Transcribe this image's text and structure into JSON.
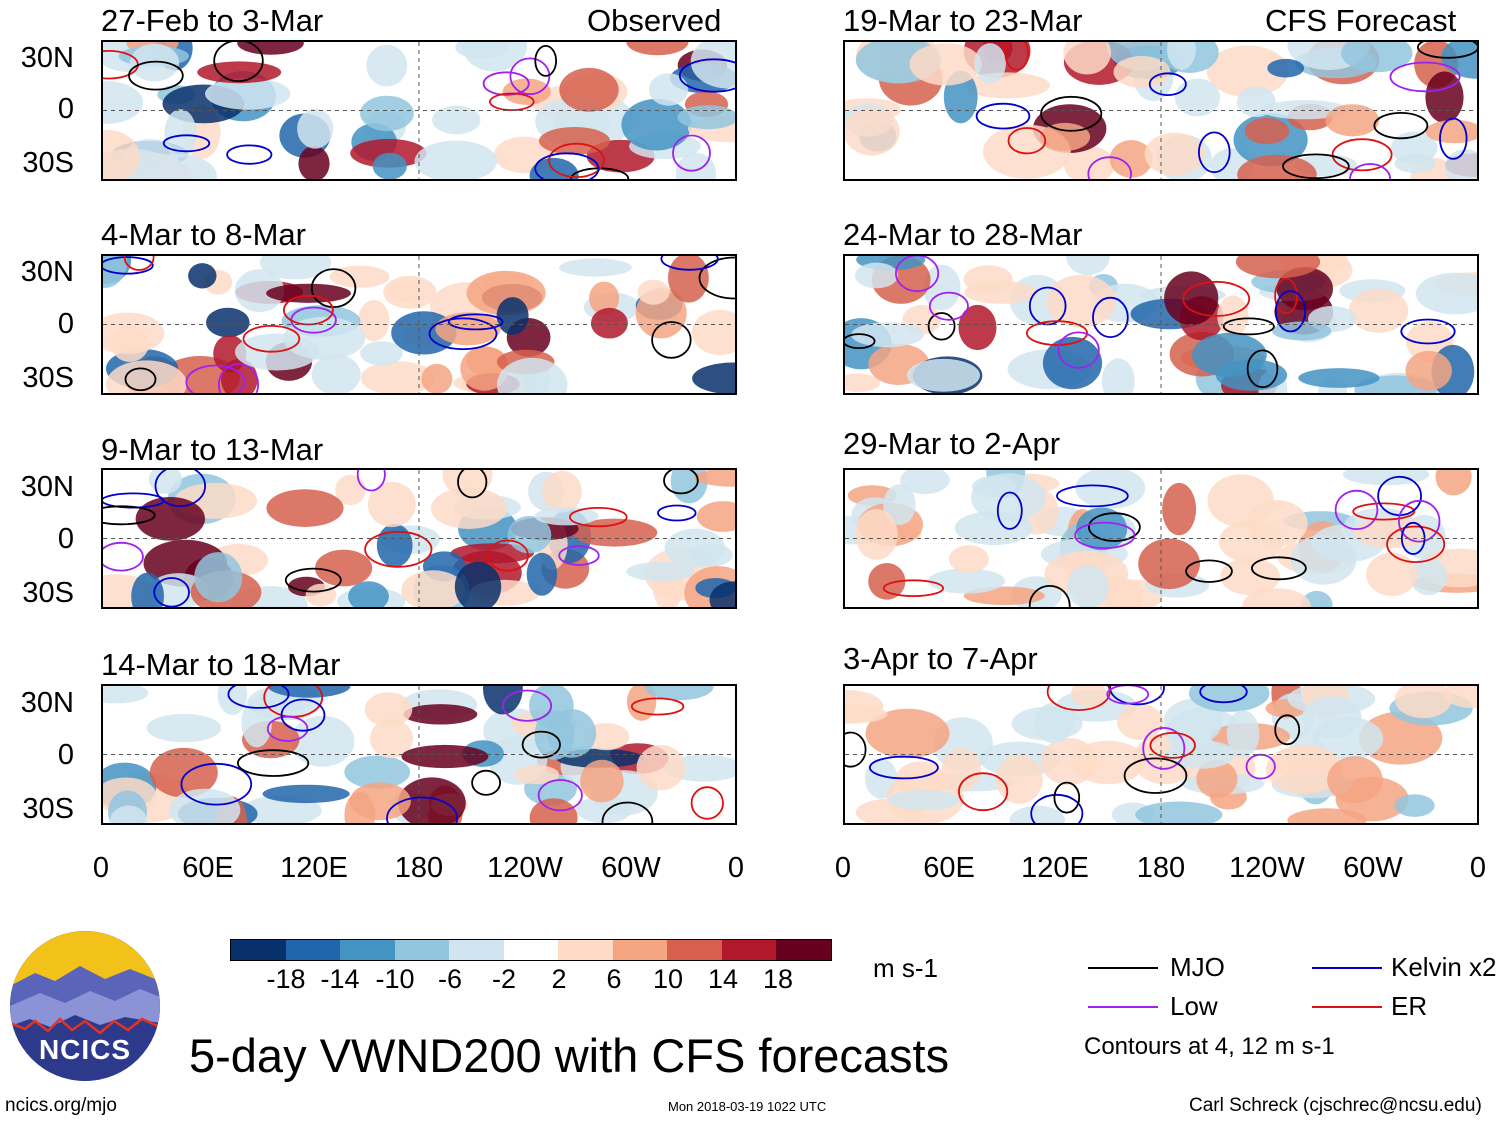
{
  "panels": [
    {
      "title": "27-Feb to 3-Mar",
      "tag": "Observed"
    },
    {
      "title": "4-Mar to 8-Mar",
      "tag": ""
    },
    {
      "title": "9-Mar to 13-Mar",
      "tag": ""
    },
    {
      "title": "14-Mar to 18-Mar",
      "tag": ""
    },
    {
      "title": "19-Mar to 23-Mar",
      "tag": "CFS Forecast"
    },
    {
      "title": "24-Mar to 28-Mar",
      "tag": ""
    },
    {
      "title": "29-Mar to 2-Apr",
      "tag": ""
    },
    {
      "title": "3-Apr to 7-Apr",
      "tag": ""
    }
  ],
  "lat_labels": [
    "30N",
    "0",
    "30S"
  ],
  "lon_labels": [
    "0",
    "60E",
    "120E",
    "180",
    "120W",
    "60W",
    "0"
  ],
  "colorbar": {
    "labels": [
      "-18",
      "-14",
      "-10",
      "-6",
      "-2",
      "2",
      "6",
      "10",
      "14",
      "18"
    ],
    "colors": [
      "#08306b",
      "#2166ac",
      "#4393c3",
      "#92c5de",
      "#d1e5f0",
      "#ffffff",
      "#fddbc7",
      "#f4a582",
      "#d6604d",
      "#b2182b",
      "#67001f"
    ],
    "units": "m s-1"
  },
  "legend": {
    "mjo": {
      "label": "MJO",
      "color": "#000000"
    },
    "kelvin": {
      "label": "Kelvin x2",
      "color": "#0000cc"
    },
    "low": {
      "label": "Low",
      "color": "#a020f0"
    },
    "er": {
      "label": "ER",
      "color": "#dd1111"
    },
    "contours": "Contours at 4, 12 m s-1"
  },
  "title": "5-day VWND200 with CFS forecasts",
  "logo_text": "NCICS",
  "footer": {
    "url": "ncics.org/mjo",
    "timestamp": "Mon 2018-03-19 1022 UTC",
    "author": "Carl Schreck (cjschrec@ncsu.edu)"
  }
}
